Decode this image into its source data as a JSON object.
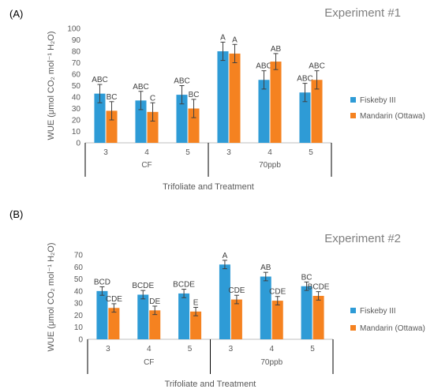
{
  "colors": {
    "fiskeby": "#2E9BD6",
    "mandarin": "#F58220",
    "axis": "#BFBFBF",
    "bracket": "#000000"
  },
  "chart_data": [
    {
      "type": "bar",
      "panel_label": "(A)",
      "title": "Experiment #1",
      "ylabel": "WUE (μmol CO₂ mol⁻¹ H₂O)",
      "xlabel": "Trifoliate and Treatment",
      "ylim": [
        0,
        100
      ],
      "ystep": 10,
      "groups": [
        "CF",
        "70ppb"
      ],
      "categories": [
        "3",
        "4",
        "5",
        "3",
        "4",
        "5"
      ],
      "legend_position": "right",
      "series": [
        {
          "name": "Fiskeby III",
          "color": "#2E9BD6",
          "values": [
            43,
            37,
            42,
            80,
            55,
            44
          ],
          "errors": [
            8,
            8,
            8,
            8,
            8,
            8
          ],
          "labels": [
            "ABC",
            "ABC",
            "ABC",
            "A",
            "ABC",
            "ABC"
          ]
        },
        {
          "name": "Mandarin (Ottawa)",
          "color": "#F58220",
          "values": [
            28,
            27,
            30,
            78,
            71,
            55
          ],
          "errors": [
            8,
            8,
            8,
            8,
            7,
            8
          ],
          "labels": [
            "BC",
            "C",
            "BC",
            "A",
            "AB",
            "ABC"
          ]
        }
      ]
    },
    {
      "type": "bar",
      "panel_label": "(B)",
      "title": "Experiment #2",
      "ylabel": "WUE (μmol CO₂ mol⁻¹ H₂O)",
      "xlabel": "Trifoliate and Treatment",
      "ylim": [
        0,
        70
      ],
      "ystep": 10,
      "groups": [
        "CF",
        "70ppb"
      ],
      "categories": [
        "3",
        "4",
        "5",
        "3",
        "4",
        "5"
      ],
      "legend_position": "right",
      "series": [
        {
          "name": "Fiskeby III",
          "color": "#2E9BD6",
          "values": [
            40,
            37,
            38,
            62,
            52,
            44
          ],
          "errors": [
            3.5,
            3.5,
            3.5,
            3.5,
            3.5,
            3.5
          ],
          "labels": [
            "BCD",
            "BCDE",
            "BCDE",
            "A",
            "AB",
            "BC"
          ]
        },
        {
          "name": "Mandarin (Ottawa)",
          "color": "#F58220",
          "values": [
            26,
            24,
            23,
            33,
            32,
            36
          ],
          "errors": [
            3.5,
            3.5,
            3.5,
            3.5,
            3.5,
            3.5
          ],
          "labels": [
            "CDE",
            "DE",
            "E",
            "CDE",
            "CDE",
            "BCDE"
          ]
        }
      ]
    }
  ]
}
